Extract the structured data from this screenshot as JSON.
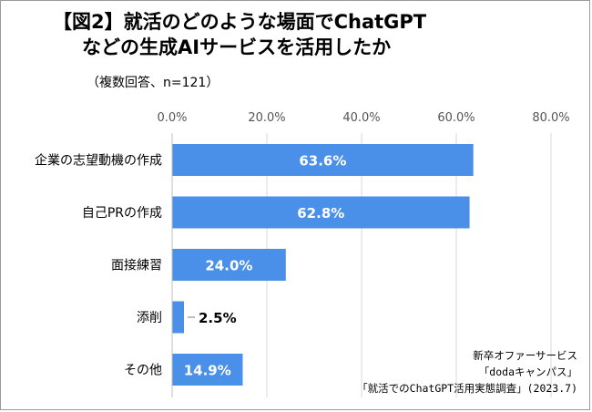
{
  "chart_data": {
    "type": "bar",
    "orientation": "horizontal",
    "title_line1": "【図2】就活のどのような場面でChatGPT",
    "title_line2": "などの生成AIサービスを活用したか",
    "subtitle": "（複数回答、n=121）",
    "categories": [
      "企業の志望動機の作成",
      "自己PRの作成",
      "面接練習",
      "添削",
      "その他"
    ],
    "values": [
      63.6,
      62.8,
      24.0,
      2.5,
      14.9
    ],
    "value_labels": [
      "63.6%",
      "62.8%",
      "24.0%",
      "2.5%",
      "14.9%"
    ],
    "xlim": [
      0,
      80
    ],
    "xticks": [
      0,
      20,
      40,
      60,
      80
    ],
    "xtick_labels": [
      "0.0%",
      "20.0%",
      "40.0%",
      "60.0%",
      "80.0%"
    ],
    "axis_position": "top",
    "grid": true,
    "bar_color": "#4a8fe8",
    "source_lines": [
      "新卒オファーサービス",
      "「dodaキャンパス」",
      "「就活でのChatGPT活用実態調査」(2023.7)"
    ]
  }
}
